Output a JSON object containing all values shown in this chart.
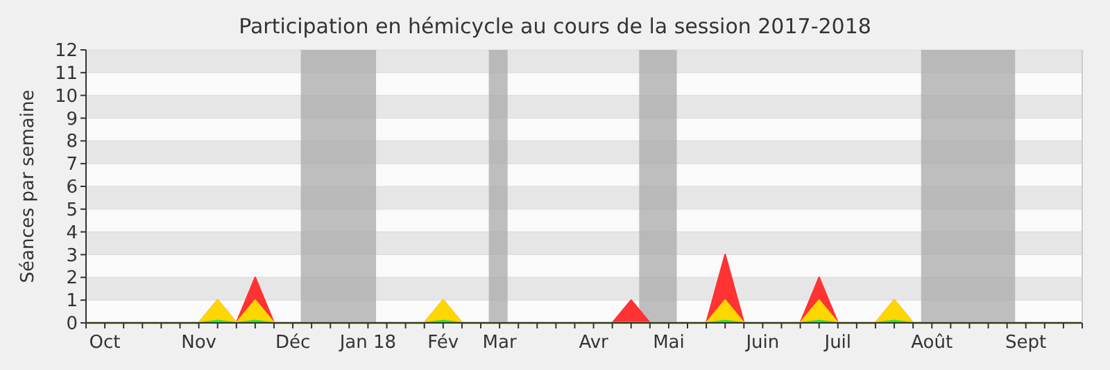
{
  "chart_data": {
    "type": "area",
    "title": "Participation en hémicycle au cours de la session 2017-2018",
    "ylabel": "Séances par semaine",
    "x": [
      "2017-09-28",
      "2017-10-05",
      "2017-10-12",
      "2017-10-19",
      "2017-10-26",
      "2017-11-02",
      "2017-11-09",
      "2017-11-16",
      "2017-11-23",
      "2017-11-30",
      "2017-12-07",
      "2017-12-14",
      "2017-12-21",
      "2017-12-28",
      "2018-01-04",
      "2018-01-11",
      "2018-01-18",
      "2018-01-25",
      "2018-02-01",
      "2018-02-08",
      "2018-02-15",
      "2018-02-22",
      "2018-03-01",
      "2018-03-08",
      "2018-03-15",
      "2018-03-22",
      "2018-03-29",
      "2018-04-05",
      "2018-04-12",
      "2018-04-19",
      "2018-04-26",
      "2018-05-03",
      "2018-05-10",
      "2018-05-17",
      "2018-05-24",
      "2018-05-31",
      "2018-06-07",
      "2018-06-14",
      "2018-06-21",
      "2018-06-28",
      "2018-07-05",
      "2018-07-12",
      "2018-07-19",
      "2018-07-26",
      "2018-08-02",
      "2018-08-09",
      "2018-08-16",
      "2018-08-23",
      "2018-08-30",
      "2018-09-06",
      "2018-09-13",
      "2018-09-20",
      "2018-09-27",
      "2018-10-04"
    ],
    "series": [
      {
        "color": "#ff3333",
        "values": [
          0,
          0,
          0,
          0,
          0,
          0,
          0,
          1,
          0,
          2,
          0,
          0,
          0,
          0,
          0,
          0,
          0,
          0,
          0,
          1,
          0,
          0,
          0,
          0,
          0,
          0,
          0,
          0,
          0,
          1,
          0,
          0,
          0,
          0,
          3,
          0,
          0,
          0,
          0,
          2,
          0,
          0,
          0,
          1,
          0,
          0,
          0,
          0,
          0,
          0,
          0,
          0,
          0,
          0
        ]
      },
      {
        "color": "#ffd700",
        "values": [
          0,
          0,
          0,
          0,
          0,
          0,
          0,
          1,
          0,
          1,
          0,
          0,
          0,
          0,
          0,
          0,
          0,
          0,
          0,
          1,
          0,
          0,
          0,
          0,
          0,
          0,
          0,
          0,
          0,
          0,
          0,
          0,
          0,
          0,
          1,
          0,
          0,
          0,
          0,
          1,
          0,
          0,
          0,
          1,
          0,
          0,
          0,
          0,
          0,
          0,
          0,
          0,
          0,
          0
        ]
      },
      {
        "color": "#33dd33",
        "values": [
          0,
          0,
          0,
          0,
          0,
          0,
          0,
          0.1,
          0,
          0.1,
          0,
          0,
          0,
          0,
          0,
          0,
          0,
          0,
          0,
          0.1,
          0,
          0,
          0,
          0,
          0,
          0,
          0,
          0,
          0,
          0,
          0,
          0,
          0,
          0,
          0.1,
          0,
          0,
          0,
          0,
          0.1,
          0,
          0,
          0,
          0.1,
          0,
          0,
          0,
          0,
          0,
          0,
          0,
          0,
          0,
          0
        ]
      }
    ],
    "xlim": [
      "2017-09-28",
      "2018-10-04"
    ],
    "xticks": [
      {
        "value": "2017-09-28",
        "label": null
      },
      {
        "value": "2017-10-05",
        "label": "Oct"
      },
      {
        "value": "2017-10-12",
        "label": null
      },
      {
        "value": "2017-10-19",
        "label": null
      },
      {
        "value": "2017-10-26",
        "label": null
      },
      {
        "value": "2017-11-02",
        "label": null
      },
      {
        "value": "2017-11-09",
        "label": "Nov"
      },
      {
        "value": "2017-11-16",
        "label": null
      },
      {
        "value": "2017-11-23",
        "label": null
      },
      {
        "value": "2017-11-30",
        "label": null
      },
      {
        "value": "2017-12-07",
        "label": null
      },
      {
        "value": "2017-12-14",
        "label": "Déc"
      },
      {
        "value": "2017-12-21",
        "label": null
      },
      {
        "value": "2017-12-28",
        "label": null
      },
      {
        "value": "2018-01-04",
        "label": null
      },
      {
        "value": "2018-01-11",
        "label": "Jan 18"
      },
      {
        "value": "2018-01-18",
        "label": null
      },
      {
        "value": "2018-01-25",
        "label": null
      },
      {
        "value": "2018-02-01",
        "label": null
      },
      {
        "value": "2018-02-08",
        "label": "Fév"
      },
      {
        "value": "2018-02-15",
        "label": null
      },
      {
        "value": "2018-02-22",
        "label": null
      },
      {
        "value": "2018-03-01",
        "label": "Mar"
      },
      {
        "value": "2018-03-08",
        "label": null
      },
      {
        "value": "2018-03-15",
        "label": null
      },
      {
        "value": "2018-03-22",
        "label": null
      },
      {
        "value": "2018-03-29",
        "label": null
      },
      {
        "value": "2018-04-05",
        "label": "Avr"
      },
      {
        "value": "2018-04-12",
        "label": null
      },
      {
        "value": "2018-04-19",
        "label": null
      },
      {
        "value": "2018-04-26",
        "label": null
      },
      {
        "value": "2018-05-03",
        "label": "Mai"
      },
      {
        "value": "2018-05-10",
        "label": null
      },
      {
        "value": "2018-05-17",
        "label": null
      },
      {
        "value": "2018-05-24",
        "label": null
      },
      {
        "value": "2018-05-31",
        "label": null
      },
      {
        "value": "2018-06-07",
        "label": "Juin"
      },
      {
        "value": "2018-06-14",
        "label": null
      },
      {
        "value": "2018-06-21",
        "label": null
      },
      {
        "value": "2018-06-28",
        "label": null
      },
      {
        "value": "2018-07-05",
        "label": "Juil"
      },
      {
        "value": "2018-07-12",
        "label": null
      },
      {
        "value": "2018-07-19",
        "label": null
      },
      {
        "value": "2018-07-26",
        "label": null
      },
      {
        "value": "2018-08-02",
        "label": null
      },
      {
        "value": "2018-08-09",
        "label": "Août"
      },
      {
        "value": "2018-08-16",
        "label": null
      },
      {
        "value": "2018-08-23",
        "label": null
      },
      {
        "value": "2018-08-30",
        "label": null
      },
      {
        "value": "2018-09-06",
        "label": null
      },
      {
        "value": "2018-09-13",
        "label": "Sept"
      },
      {
        "value": "2018-09-20",
        "label": null
      },
      {
        "value": "2018-09-27",
        "label": null
      },
      {
        "value": "2018-10-04",
        "label": null
      }
    ],
    "ylim": [
      0,
      12
    ],
    "yticks": [
      0,
      1,
      2,
      3,
      4,
      5,
      6,
      7,
      8,
      9,
      10,
      11,
      12
    ],
    "grid": "y",
    "bands": [
      {
        "axis": "x",
        "from": "2017-12-17",
        "to": "2018-01-14",
        "color": "#aaaaaa"
      },
      {
        "axis": "x",
        "from": "2018-02-25",
        "to": "2018-03-04",
        "color": "#aaaaaa"
      },
      {
        "axis": "x",
        "from": "2018-04-22",
        "to": "2018-05-06",
        "color": "#aaaaaa"
      },
      {
        "axis": "x",
        "from": "2018-08-05",
        "to": "2018-09-09",
        "color": "#aaaaaa"
      }
    ]
  }
}
